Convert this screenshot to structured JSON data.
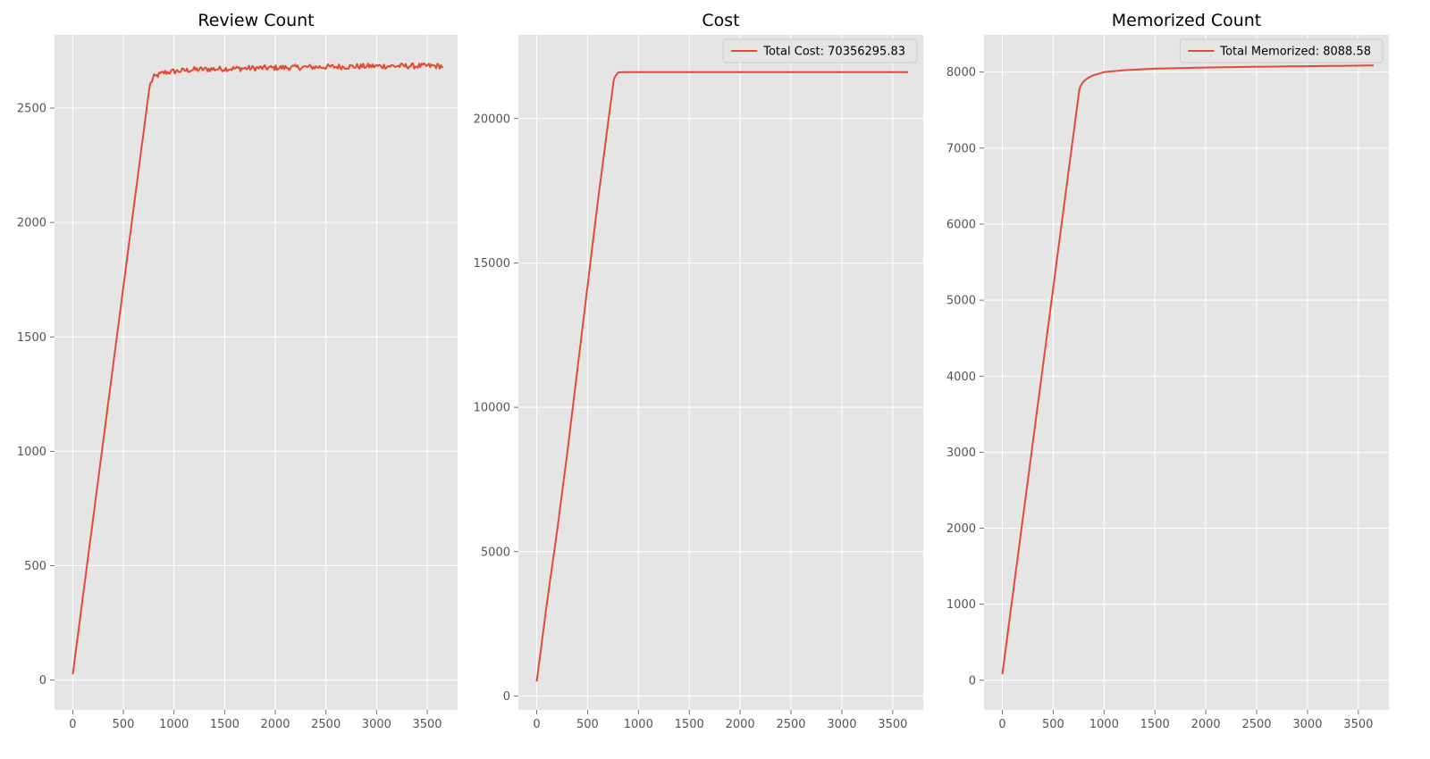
{
  "chart_data": [
    {
      "type": "line",
      "title": "Review Count",
      "xlabel": "",
      "ylabel": "",
      "xlim": [
        -180,
        3800
      ],
      "ylim": [
        -130,
        2820
      ],
      "xticks": [
        0,
        500,
        1000,
        1500,
        2000,
        2500,
        3000,
        3500
      ],
      "yticks": [
        0,
        500,
        1000,
        1500,
        2000,
        2500
      ],
      "grid": true,
      "legend": null,
      "series": [
        {
          "color": "#e24a33",
          "noise": 12,
          "x": [
            0,
            760,
            800,
            900,
            1000,
            1200,
            1500,
            2000,
            2500,
            3000,
            3500,
            3650
          ],
          "y": [
            25,
            2600,
            2635,
            2655,
            2660,
            2668,
            2672,
            2676,
            2680,
            2683,
            2684,
            2683
          ]
        }
      ]
    },
    {
      "type": "line",
      "title": "Cost",
      "xlabel": "",
      "ylabel": "",
      "xlim": [
        -180,
        3800
      ],
      "ylim": [
        -480,
        22900
      ],
      "xticks": [
        0,
        500,
        1000,
        1500,
        2000,
        2500,
        3000,
        3500
      ],
      "yticks": [
        0,
        5000,
        10000,
        15000,
        20000
      ],
      "grid": true,
      "legend": "top-right",
      "series": [
        {
          "name": "Total Cost: 70356295.83",
          "color": "#e24a33",
          "noise": 0,
          "x": [
            0,
            100,
            200,
            300,
            400,
            500,
            600,
            700,
            760,
            800,
            900,
            1500,
            2000,
            3000,
            3650
          ],
          "y": [
            500,
            3200,
            5700,
            8400,
            11300,
            14200,
            17100,
            19800,
            21400,
            21600,
            21610,
            21610,
            21610,
            21610,
            21610
          ]
        }
      ]
    },
    {
      "type": "line",
      "title": "Memorized Count",
      "xlabel": "",
      "ylabel": "",
      "xlim": [
        -180,
        3800
      ],
      "ylim": [
        -390,
        8490
      ],
      "xticks": [
        0,
        500,
        1000,
        1500,
        2000,
        2500,
        3000,
        3500
      ],
      "yticks": [
        0,
        1000,
        2000,
        3000,
        4000,
        5000,
        6000,
        7000,
        8000
      ],
      "grid": true,
      "legend": "top-right",
      "series": [
        {
          "name": "Total Memorized: 8088.58",
          "color": "#e24a33",
          "noise": 0,
          "x": [
            0,
            760,
            800,
            850,
            900,
            1000,
            1200,
            1500,
            2000,
            2500,
            3000,
            3500,
            3650
          ],
          "y": [
            80,
            7800,
            7880,
            7930,
            7960,
            8000,
            8025,
            8045,
            8060,
            8070,
            8078,
            8085,
            8088
          ]
        }
      ]
    }
  ]
}
